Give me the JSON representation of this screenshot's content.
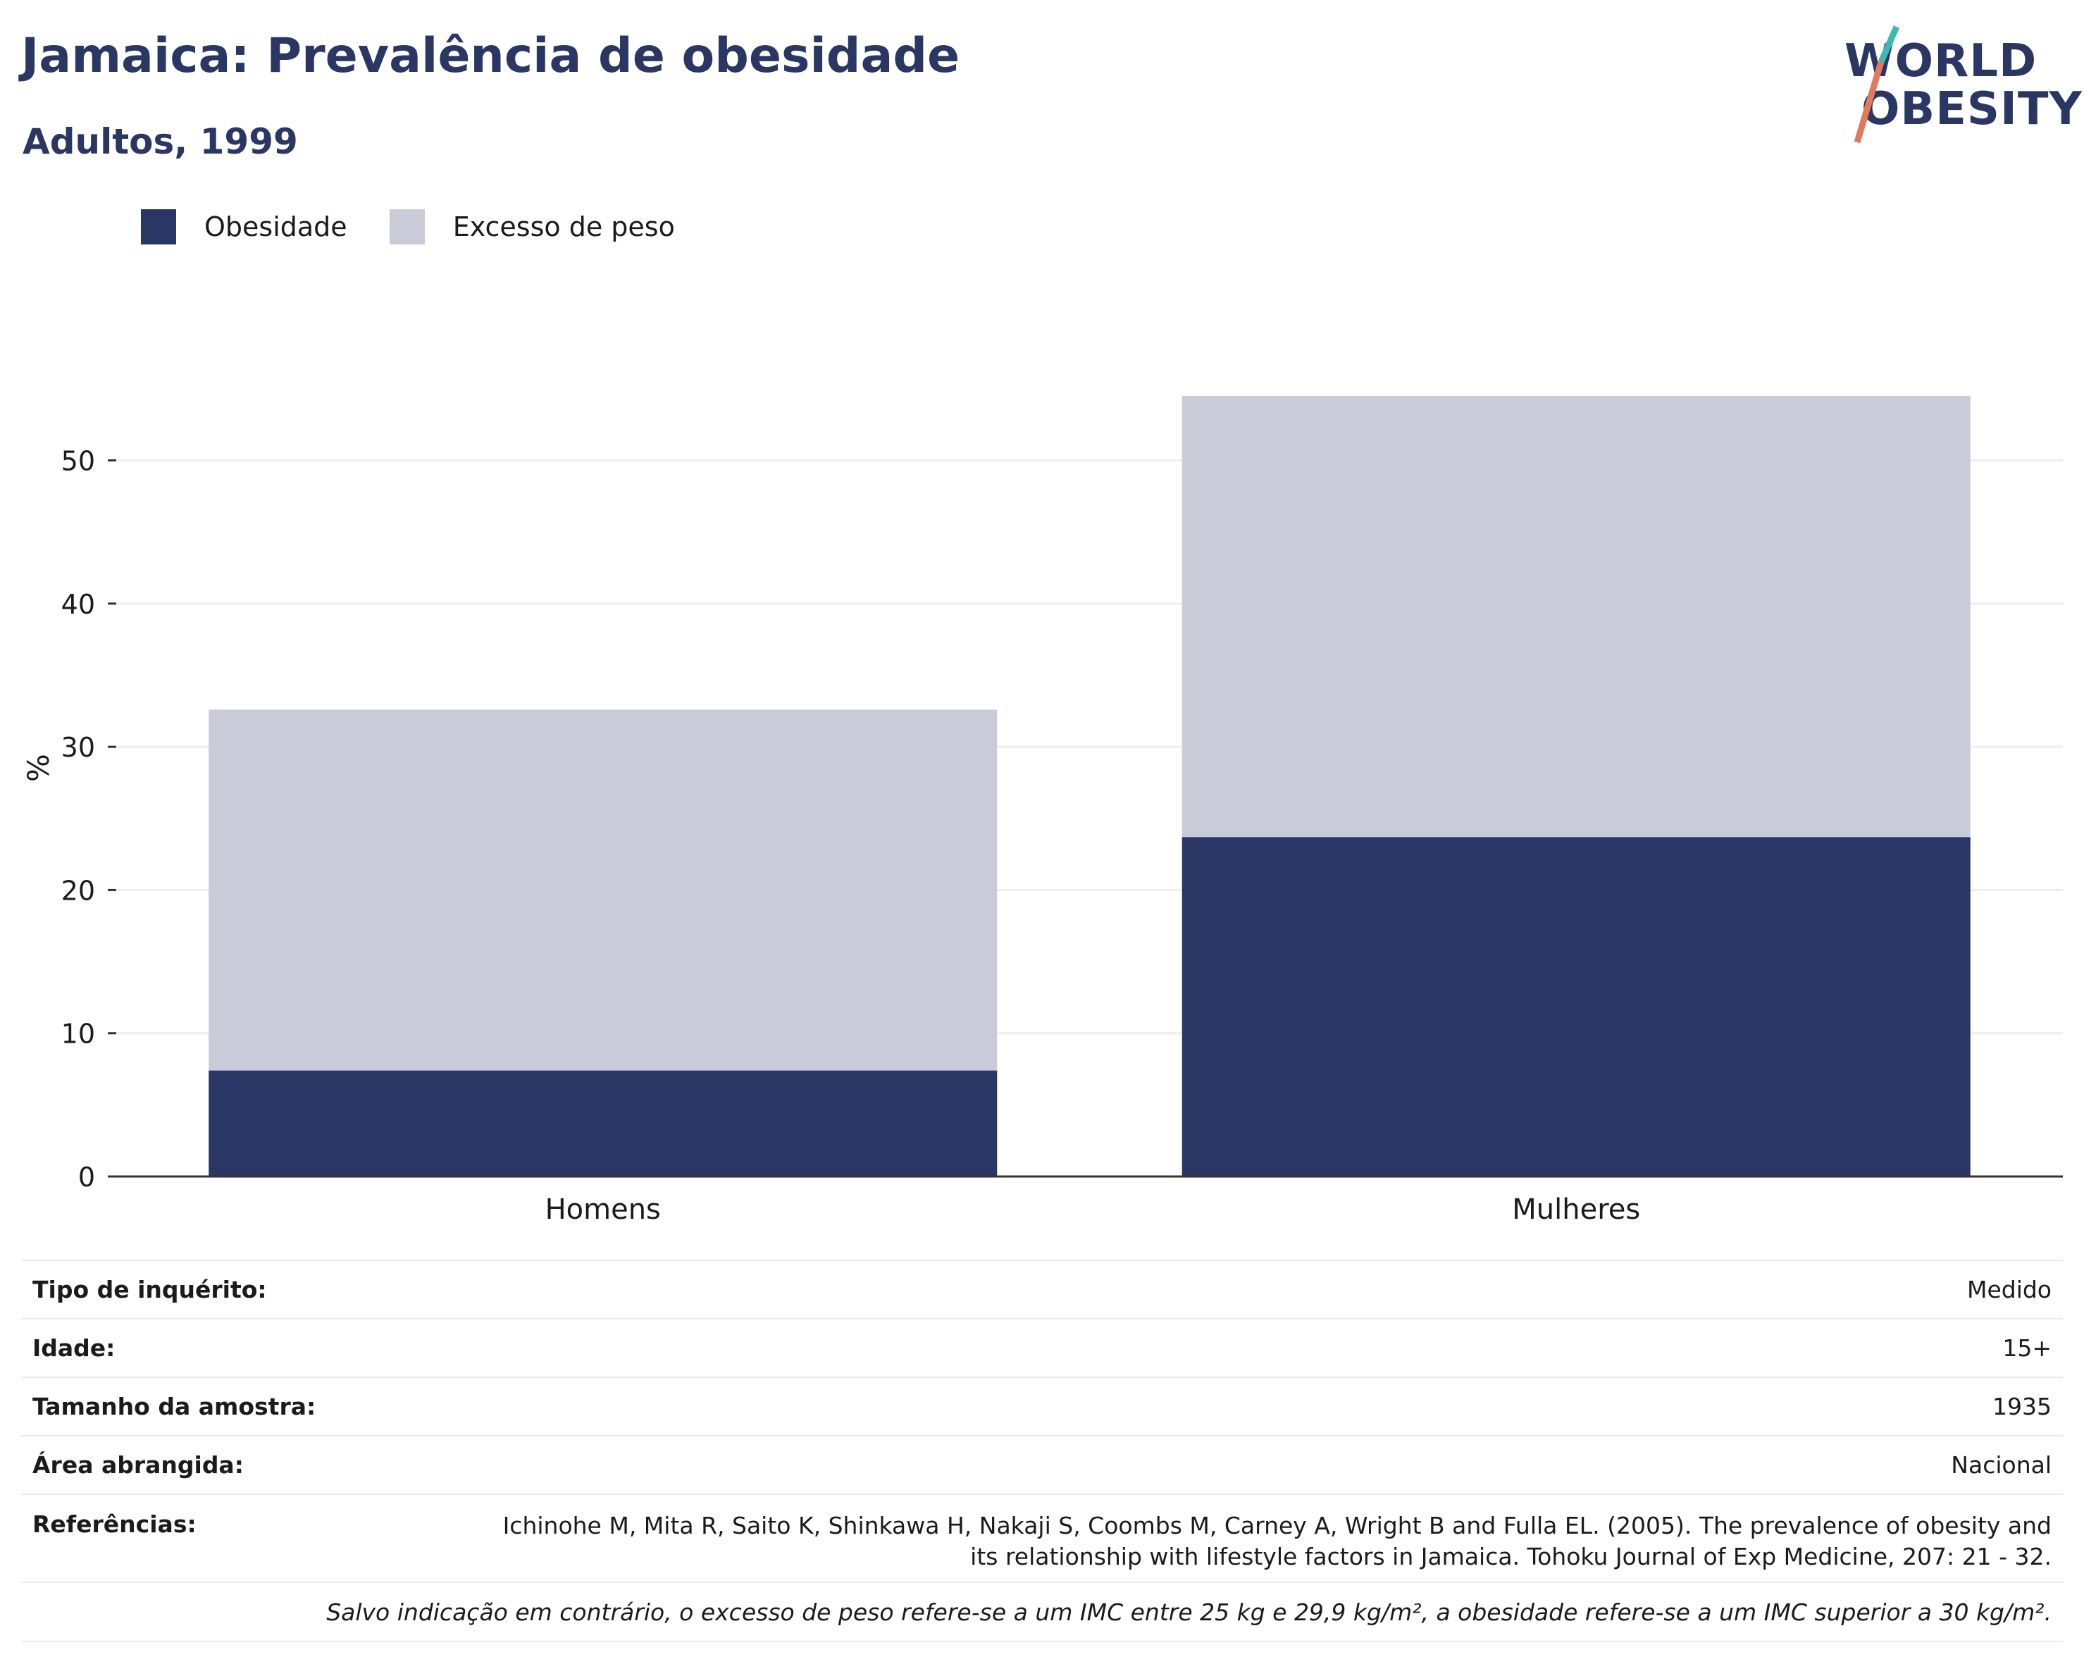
{
  "title": "Jamaica: Prevalência de obesidade",
  "subtitle": "Adultos, 1999",
  "logo": {
    "line1": "WORLD",
    "line2": "OBESITY"
  },
  "legend": [
    {
      "label": "Obesidade",
      "color": "#2a3664"
    },
    {
      "label": "Excesso de peso",
      "color": "#c9ccd8"
    }
  ],
  "chart_data": {
    "type": "bar",
    "stacked": true,
    "categories": [
      "Homens",
      "Mulheres"
    ],
    "series": [
      {
        "name": "Obesidade",
        "values": [
          7.4,
          23.7
        ],
        "color": "#2a3664"
      },
      {
        "name": "Excesso de peso",
        "values": [
          25.2,
          30.8
        ],
        "color": "#c9ccd8"
      }
    ],
    "ylabel": "%",
    "ylim": [
      0,
      54.6
    ],
    "yticks": [
      0,
      10,
      20,
      30,
      40,
      50
    ],
    "grid": true,
    "legend_position": "top-left"
  },
  "info": {
    "rows": [
      {
        "key": "Tipo de inquérito:",
        "value": "Medido"
      },
      {
        "key": "Idade:",
        "value": "15+"
      },
      {
        "key": "Tamanho da amostra:",
        "value": "1935"
      },
      {
        "key": "Área abrangida:",
        "value": "Nacional"
      },
      {
        "key": "Referências:",
        "value": "Ichinohe M, Mita R, Saito K, Shinkawa H, Nakaji S, Coombs M, Carney A, Wright B and Fulla EL. (2005). The prevalence of obesity and its relationship with lifestyle factors in Jamaica. Tohoku Journal of Exp Medicine, 207: 21 - 32."
      }
    ],
    "note": "Salvo indicação em contrário, o excesso de peso refere-se a um IMC entre 25 kg e 29,9 kg/m², a obesidade refere-se a um IMC superior a 30 kg/m²."
  }
}
